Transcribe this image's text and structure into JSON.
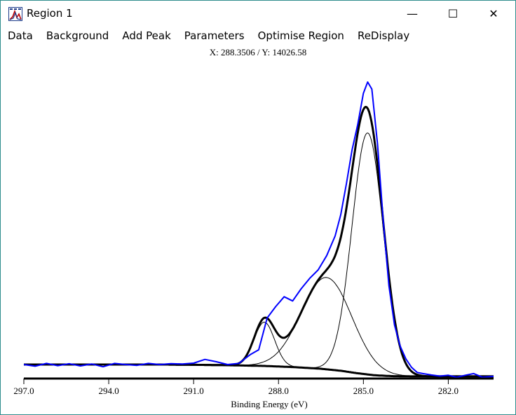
{
  "window": {
    "title": "Region 1",
    "min_glyph": "—",
    "max_glyph": "☐",
    "close_glyph": "✕"
  },
  "menu": {
    "items": [
      "Data",
      "Background",
      "Add Peak",
      "Parameters",
      "Optimise Region",
      "ReDisplay"
    ]
  },
  "readout": {
    "text": "X: 288.3506 / Y: 14026.58"
  },
  "colors": {
    "data_trace": "#0000ff",
    "fit": "#000000",
    "window_border": "#2d8c8c"
  },
  "chart_data": {
    "type": "line",
    "title": "",
    "xlabel": "Binding Energy (eV)",
    "ylabel": "",
    "x_reversed": true,
    "xlim": [
      297.0,
      280.4
    ],
    "ylim": [
      0,
      1
    ],
    "ticks": [
      297.0,
      294.0,
      291.0,
      288.0,
      285.0,
      282.0
    ],
    "tick_labels": [
      "297.0",
      "294.0",
      "291.0",
      "288.0",
      "285.0",
      "282.0"
    ],
    "peaks": [
      {
        "center": 288.5,
        "fwhm": 0.85,
        "height": 0.155
      },
      {
        "center": 286.3,
        "fwhm": 2.1,
        "height": 0.325
      },
      {
        "center": 284.85,
        "fwhm": 1.3,
        "height": 0.855
      }
    ],
    "background": {
      "x": [
        297.0,
        292.0,
        290.0,
        288.5,
        287.5,
        286.5,
        285.8,
        285.2,
        284.6,
        284.0,
        283.2,
        282.0,
        281.0,
        280.4
      ],
      "y": [
        0.0,
        0.0,
        -0.002,
        -0.005,
        -0.009,
        -0.015,
        -0.022,
        -0.031,
        -0.038,
        -0.041,
        -0.042,
        -0.042,
        -0.042,
        -0.042
      ]
    },
    "measured": {
      "x": [
        297.0,
        296.6,
        296.2,
        295.8,
        295.4,
        295.0,
        294.6,
        294.2,
        293.8,
        293.4,
        293.0,
        292.6,
        292.2,
        291.8,
        291.4,
        291.0,
        290.6,
        290.2,
        289.8,
        289.4,
        289.0,
        288.7,
        288.4,
        288.1,
        287.8,
        287.5,
        287.2,
        286.9,
        286.6,
        286.3,
        286.0,
        285.8,
        285.6,
        285.4,
        285.2,
        285.0,
        284.85,
        284.7,
        284.5,
        284.3,
        284.1,
        283.9,
        283.7,
        283.5,
        283.3,
        283.1,
        282.9,
        282.6,
        282.3,
        282.0,
        281.7,
        281.4,
        281.1,
        280.8,
        280.4
      ],
      "y": [
        0.0,
        -0.006,
        0.004,
        -0.004,
        0.003,
        -0.005,
        0.002,
        -0.008,
        0.004,
        0.0,
        -0.003,
        0.004,
        0.0,
        0.003,
        0.002,
        0.005,
        0.018,
        0.01,
        0.0,
        0.004,
        0.035,
        0.052,
        0.165,
        0.205,
        0.24,
        0.225,
        0.268,
        0.305,
        0.335,
        0.385,
        0.455,
        0.53,
        0.64,
        0.76,
        0.85,
        0.96,
        1.0,
        0.975,
        0.78,
        0.51,
        0.28,
        0.14,
        0.065,
        0.02,
        -0.01,
        -0.028,
        -0.032,
        -0.037,
        -0.041,
        -0.038,
        -0.045,
        -0.038,
        -0.032,
        -0.045,
        -0.042
      ]
    }
  }
}
